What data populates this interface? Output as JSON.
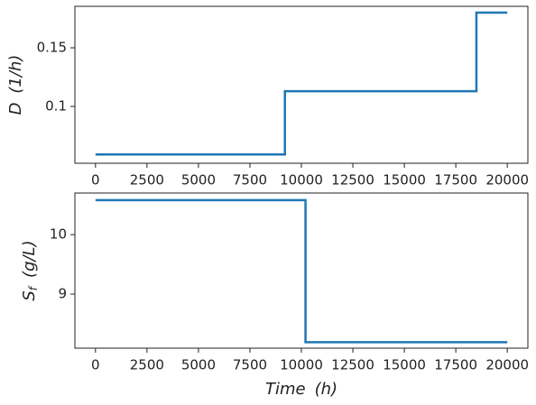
{
  "chart_data": [
    {
      "type": "line",
      "drawstyle": "steps-post",
      "ylabel": "D",
      "ylabel_unit": "(1/h)",
      "x": [
        0,
        9200,
        18500,
        20000
      ],
      "series": [
        {
          "color": "#1f77b4",
          "values": [
            0.059,
            0.113,
            0.18,
            0.18
          ]
        }
      ],
      "xlim": [
        -1000,
        21000
      ],
      "xticks": [
        0,
        2500,
        5000,
        7500,
        10000,
        12500,
        15000,
        17500,
        20000
      ],
      "ylim": [
        0.0515,
        0.1854
      ],
      "yticks": [
        0.1,
        0.15
      ],
      "grid": false
    },
    {
      "type": "line",
      "drawstyle": "steps-post",
      "ylabel": "S",
      "ylabel_sub": "f",
      "ylabel_unit": "(g/L)",
      "xlabel": "Time",
      "xlabel_unit": "(h)",
      "x": [
        0,
        10200,
        20000
      ],
      "series": [
        {
          "color": "#1f77b4",
          "values": [
            10.58,
            8.19,
            8.19
          ]
        }
      ],
      "xlim": [
        -1000,
        21000
      ],
      "xticks": [
        0,
        2500,
        5000,
        7500,
        10000,
        12500,
        15000,
        17500,
        20000
      ],
      "ylim": [
        8.09,
        10.7
      ],
      "yticks": [
        9,
        10
      ],
      "grid": false
    }
  ]
}
